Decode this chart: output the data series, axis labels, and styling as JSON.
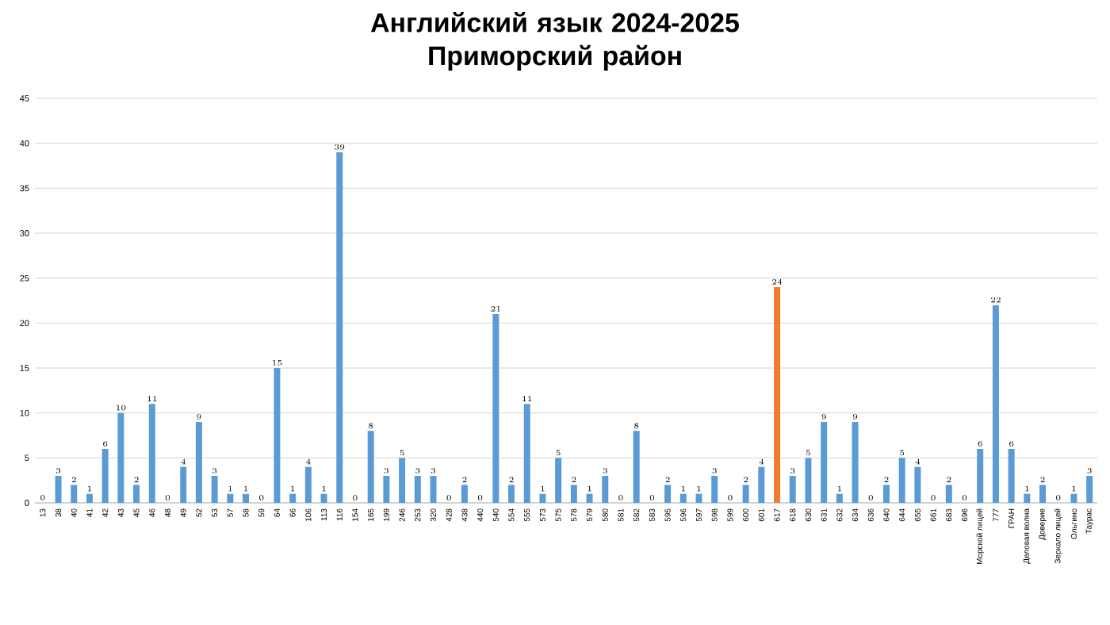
{
  "chart_data": {
    "type": "bar",
    "title": "Английский язык 2024-2025\nПриморский район",
    "categories": [
      "13",
      "38",
      "40",
      "41",
      "42",
      "43",
      "45",
      "46",
      "48",
      "49",
      "52",
      "53",
      "57",
      "58",
      "59",
      "64",
      "66",
      "106",
      "113",
      "116",
      "154",
      "165",
      "199",
      "246",
      "253",
      "320",
      "428",
      "438",
      "440",
      "540",
      "554",
      "555",
      "573",
      "575",
      "578",
      "579",
      "580",
      "581",
      "582",
      "583",
      "595",
      "596",
      "597",
      "598",
      "599",
      "600",
      "601",
      "617",
      "618",
      "630",
      "631",
      "632",
      "634",
      "636",
      "640",
      "644",
      "655",
      "661",
      "683",
      "696",
      "Морской лицей",
      "777",
      "ГРАН",
      "Деловая волна",
      "Доверие",
      "Зеркало лицей",
      "Ольгино",
      "Таурас"
    ],
    "values": [
      0,
      3,
      2,
      1,
      6,
      10,
      2,
      11,
      0,
      4,
      9,
      3,
      1,
      1,
      0,
      15,
      1,
      4,
      1,
      39,
      0,
      8,
      3,
      5,
      3,
      3,
      0,
      2,
      0,
      21,
      2,
      11,
      1,
      5,
      2,
      1,
      3,
      0,
      8,
      0,
      2,
      1,
      1,
      3,
      0,
      2,
      4,
      24,
      3,
      5,
      9,
      1,
      9,
      0,
      2,
      5,
      4,
      0,
      2,
      0,
      6,
      22,
      6,
      1,
      2,
      0,
      1,
      3
    ],
    "colors": [
      "#5b9bd5",
      "#5b9bd5",
      "#5b9bd5",
      "#5b9bd5",
      "#5b9bd5",
      "#5b9bd5",
      "#5b9bd5",
      "#5b9bd5",
      "#5b9bd5",
      "#5b9bd5",
      "#5b9bd5",
      "#5b9bd5",
      "#5b9bd5",
      "#5b9bd5",
      "#5b9bd5",
      "#5b9bd5",
      "#5b9bd5",
      "#5b9bd5",
      "#5b9bd5",
      "#5b9bd5",
      "#5b9bd5",
      "#5b9bd5",
      "#5b9bd5",
      "#5b9bd5",
      "#5b9bd5",
      "#5b9bd5",
      "#5b9bd5",
      "#5b9bd5",
      "#5b9bd5",
      "#5b9bd5",
      "#5b9bd5",
      "#5b9bd5",
      "#5b9bd5",
      "#5b9bd5",
      "#5b9bd5",
      "#5b9bd5",
      "#5b9bd5",
      "#5b9bd5",
      "#5b9bd5",
      "#5b9bd5",
      "#5b9bd5",
      "#5b9bd5",
      "#5b9bd5",
      "#5b9bd5",
      "#5b9bd5",
      "#5b9bd5",
      "#5b9bd5",
      "#ed7d31",
      "#5b9bd5",
      "#5b9bd5",
      "#5b9bd5",
      "#5b9bd5",
      "#5b9bd5",
      "#5b9bd5",
      "#5b9bd5",
      "#5b9bd5",
      "#5b9bd5",
      "#5b9bd5",
      "#5b9bd5",
      "#5b9bd5",
      "#5b9bd5",
      "#5b9bd5",
      "#5b9bd5",
      "#5b9bd5",
      "#5b9bd5",
      "#5b9bd5",
      "#5b9bd5",
      "#5b9bd5"
    ],
    "ylim": [
      0,
      45
    ],
    "yticks": [
      0,
      5,
      10,
      15,
      20,
      25,
      30,
      35,
      40,
      45
    ],
    "grid": "y",
    "data_labels": true
  }
}
